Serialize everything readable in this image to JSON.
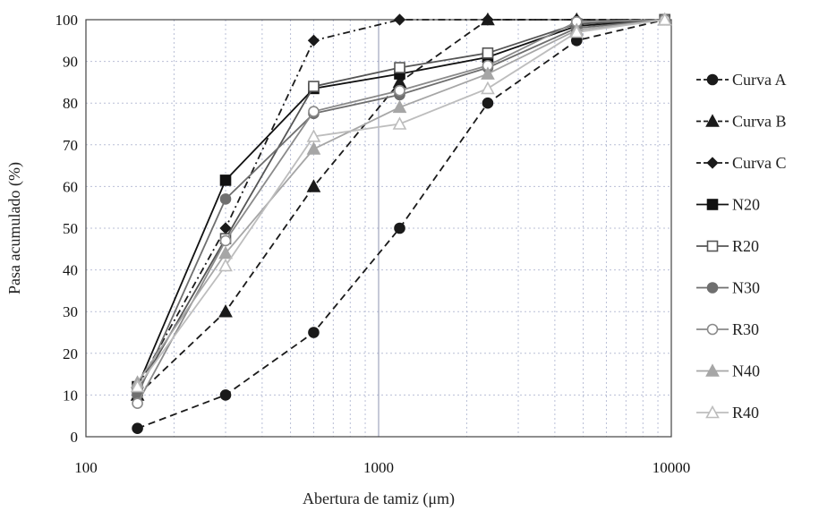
{
  "chart_data": {
    "type": "line",
    "x_scale": "log",
    "xlim": [
      100,
      10000
    ],
    "ylim": [
      0,
      100
    ],
    "xlabel": "Abertura de tamiz (μm)",
    "ylabel": "Pasa acumulado (%)",
    "x_ticks": [
      "100",
      "1000",
      "10000"
    ],
    "y_ticks": [
      "0",
      "10",
      "20",
      "30",
      "40",
      "50",
      "60",
      "70",
      "80",
      "90",
      "100"
    ],
    "grid": true,
    "legend_position": "right",
    "x": [
      150,
      300,
      600,
      1180,
      2360,
      4750,
      9500
    ],
    "series": [
      {
        "name": "Curva A",
        "values": [
          2,
          10,
          25,
          50,
          80,
          95,
          100
        ],
        "color": "#1a1a1a",
        "marker": "circle-filled",
        "dash": "8,5"
      },
      {
        "name": "Curva B",
        "values": [
          10,
          30,
          60,
          85,
          100,
          100,
          100
        ],
        "color": "#1a1a1a",
        "marker": "triangle-filled",
        "dash": "8,5"
      },
      {
        "name": "Curva C",
        "values": [
          12,
          50,
          95,
          100,
          100,
          100,
          100
        ],
        "color": "#1a1a1a",
        "marker": "diamond-filled",
        "dash": "8,4,2,4"
      },
      {
        "name": "N20",
        "values": [
          12,
          61.5,
          83.5,
          87,
          91,
          98.5,
          100
        ],
        "color": "#111111",
        "marker": "square-filled",
        "dash": ""
      },
      {
        "name": "R20",
        "values": [
          11,
          47.5,
          84,
          88.5,
          92,
          99,
          100
        ],
        "color": "#555555",
        "marker": "square-open",
        "dash": ""
      },
      {
        "name": "N30",
        "values": [
          10,
          57,
          77.5,
          82,
          88.5,
          98,
          100
        ],
        "color": "#6f6f6f",
        "marker": "circle-filled",
        "dash": ""
      },
      {
        "name": "R30",
        "values": [
          8,
          47,
          78,
          83,
          89,
          99.5,
          100
        ],
        "color": "#8a8a8a",
        "marker": "circle-open",
        "dash": ""
      },
      {
        "name": "N40",
        "values": [
          13,
          44,
          69,
          79,
          87,
          97.5,
          100
        ],
        "color": "#a6a6a6",
        "marker": "triangle-filled",
        "dash": ""
      },
      {
        "name": "R40",
        "values": [
          12,
          41,
          72,
          75,
          83.5,
          97,
          100
        ],
        "color": "#bdbdbd",
        "marker": "triangle-open",
        "dash": ""
      }
    ]
  }
}
